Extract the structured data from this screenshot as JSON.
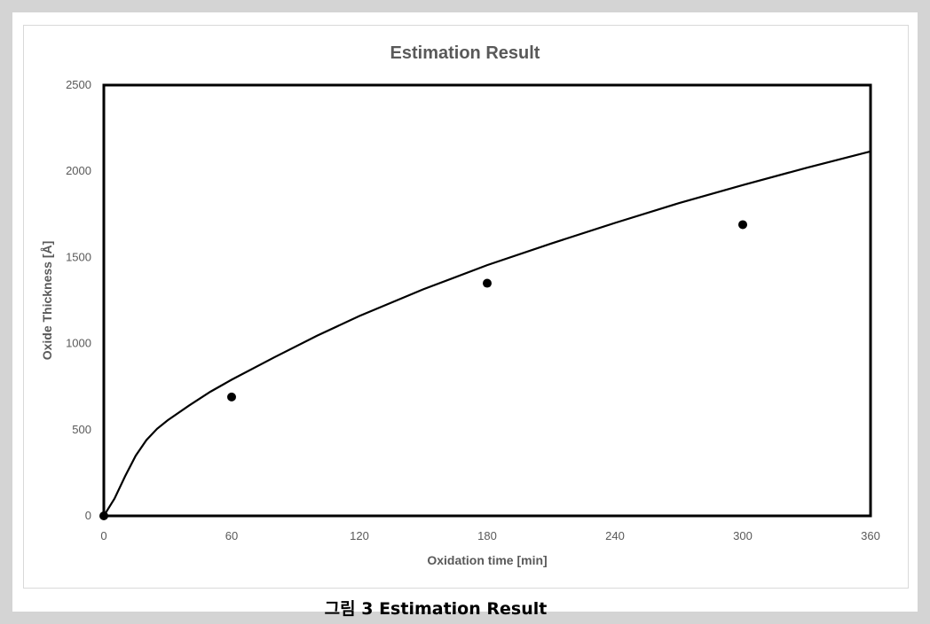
{
  "caption": "그림 3 Estimation Result",
  "chart_data": {
    "type": "scatter",
    "title": "Estimation Result",
    "xlabel": "Oxidation time [min]",
    "ylabel": "Oxide Thickness [Å]",
    "xlim": [
      0,
      360
    ],
    "ylim": [
      0,
      2500
    ],
    "xticks": [
      0,
      60,
      120,
      180,
      240,
      300,
      360
    ],
    "yticks": [
      0,
      500,
      1000,
      1500,
      2000,
      2500
    ],
    "grid": false,
    "series": [
      {
        "kind": "points",
        "x": [
          0,
          60,
          180,
          300
        ],
        "y": [
          0,
          690,
          1350,
          1690
        ]
      },
      {
        "kind": "line",
        "x": [
          0,
          5,
          10,
          15,
          20,
          25,
          30,
          40,
          50,
          60,
          80,
          100,
          120,
          150,
          180,
          210,
          240,
          270,
          300,
          330,
          360
        ],
        "y": [
          0,
          100,
          230,
          350,
          440,
          505,
          555,
          640,
          720,
          790,
          920,
          1045,
          1160,
          1315,
          1455,
          1580,
          1700,
          1815,
          1920,
          2020,
          2115
        ]
      }
    ],
    "colors": {
      "line": "#000000",
      "points": "#000000",
      "text": "#595959",
      "frame": "#000000"
    }
  }
}
